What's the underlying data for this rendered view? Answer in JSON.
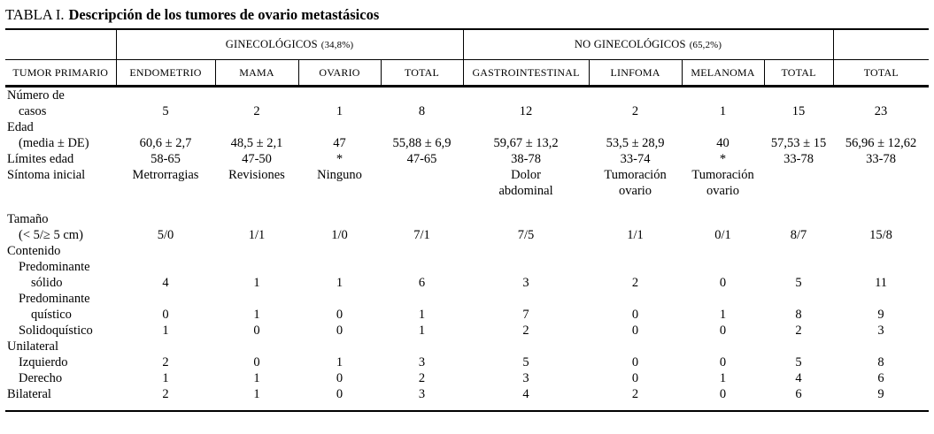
{
  "title": {
    "prefix": "TABLA I.",
    "text": "Descripción de los tumores de ovario metastásicos"
  },
  "table": {
    "groups": [
      {
        "name": "GINECOLÓGICOS",
        "pct": "(34,8%)"
      },
      {
        "name": "NO GINECOLÓGICOS",
        "pct": "(65,2%)"
      }
    ],
    "columns": [
      "TUMOR PRIMARIO",
      "ENDOMETRIO",
      "MAMA",
      "OVARIO",
      "TOTAL",
      "GASTROINTESTINAL",
      "LINFOMA",
      "MELANOMA",
      "TOTAL",
      "TOTAL"
    ],
    "rows": [
      {
        "label": "Número de",
        "indent": 0,
        "values": [
          "",
          "",
          "",
          "",
          "",
          "",
          "",
          "",
          ""
        ]
      },
      {
        "label": "casos",
        "indent": 1,
        "values": [
          "5",
          "2",
          "1",
          "8",
          "12",
          "2",
          "1",
          "15",
          "23"
        ]
      },
      {
        "label": "Edad",
        "indent": 0,
        "values": [
          "",
          "",
          "",
          "",
          "",
          "",
          "",
          "",
          ""
        ]
      },
      {
        "label": "(media ± DE)",
        "indent": 1,
        "values": [
          "60,6 ± 2,7",
          "48,5 ± 2,1",
          "47",
          "55,88 ± 6,9",
          "59,67 ± 13,2",
          "53,5 ± 28,9",
          "40",
          "57,53 ± 15",
          "56,96 ± 12,62"
        ]
      },
      {
        "label": "Límites edad",
        "indent": 0,
        "values": [
          "58-65",
          "47-50",
          "*",
          "47-65",
          "38-78",
          "33-74",
          "*",
          "33-78",
          "33-78"
        ]
      },
      {
        "label": "Síntoma inicial",
        "indent": 0,
        "values": [
          "Metrorragias",
          "Revisiones",
          "Ninguno",
          "",
          "Dolor\nabdominal",
          "Tumoración\novario",
          "Tumoración\novario",
          "",
          ""
        ]
      },
      {
        "type": "spacer"
      },
      {
        "label": "Tamaño",
        "indent": 0,
        "values": [
          "",
          "",
          "",
          "",
          "",
          "",
          "",
          "",
          ""
        ]
      },
      {
        "label": "(< 5/≥ 5 cm)",
        "indent": 1,
        "values": [
          "5/0",
          "1/1",
          "1/0",
          "7/1",
          "7/5",
          "1/1",
          "0/1",
          "8/7",
          "15/8"
        ]
      },
      {
        "label": "Contenido",
        "indent": 0,
        "values": [
          "",
          "",
          "",
          "",
          "",
          "",
          "",
          "",
          ""
        ]
      },
      {
        "label": "Predominante",
        "indent": 1,
        "values": [
          "",
          "",
          "",
          "",
          "",
          "",
          "",
          "",
          ""
        ]
      },
      {
        "label": "sólido",
        "indent": 2,
        "values": [
          "4",
          "1",
          "1",
          "6",
          "3",
          "2",
          "0",
          "5",
          "11"
        ]
      },
      {
        "label": "Predominante",
        "indent": 1,
        "values": [
          "",
          "",
          "",
          "",
          "",
          "",
          "",
          "",
          ""
        ]
      },
      {
        "label": "quístico",
        "indent": 2,
        "values": [
          "0",
          "1",
          "0",
          "1",
          "7",
          "0",
          "1",
          "8",
          "9"
        ]
      },
      {
        "label": "Solidoquístico",
        "indent": 1,
        "values": [
          "1",
          "0",
          "0",
          "1",
          "2",
          "0",
          "0",
          "2",
          "3"
        ]
      },
      {
        "label": "Unilateral",
        "indent": 0,
        "values": [
          "",
          "",
          "",
          "",
          "",
          "",
          "",
          "",
          ""
        ]
      },
      {
        "label": "Izquierdo",
        "indent": 1,
        "values": [
          "2",
          "0",
          "1",
          "3",
          "5",
          "0",
          "0",
          "5",
          "8"
        ]
      },
      {
        "label": "Derecho",
        "indent": 1,
        "values": [
          "1",
          "1",
          "0",
          "2",
          "3",
          "0",
          "1",
          "4",
          "6"
        ]
      },
      {
        "label": "Bilateral",
        "indent": 0,
        "values": [
          "2",
          "1",
          "0",
          "3",
          "4",
          "2",
          "0",
          "6",
          "9"
        ]
      },
      {
        "type": "endgap"
      }
    ]
  }
}
